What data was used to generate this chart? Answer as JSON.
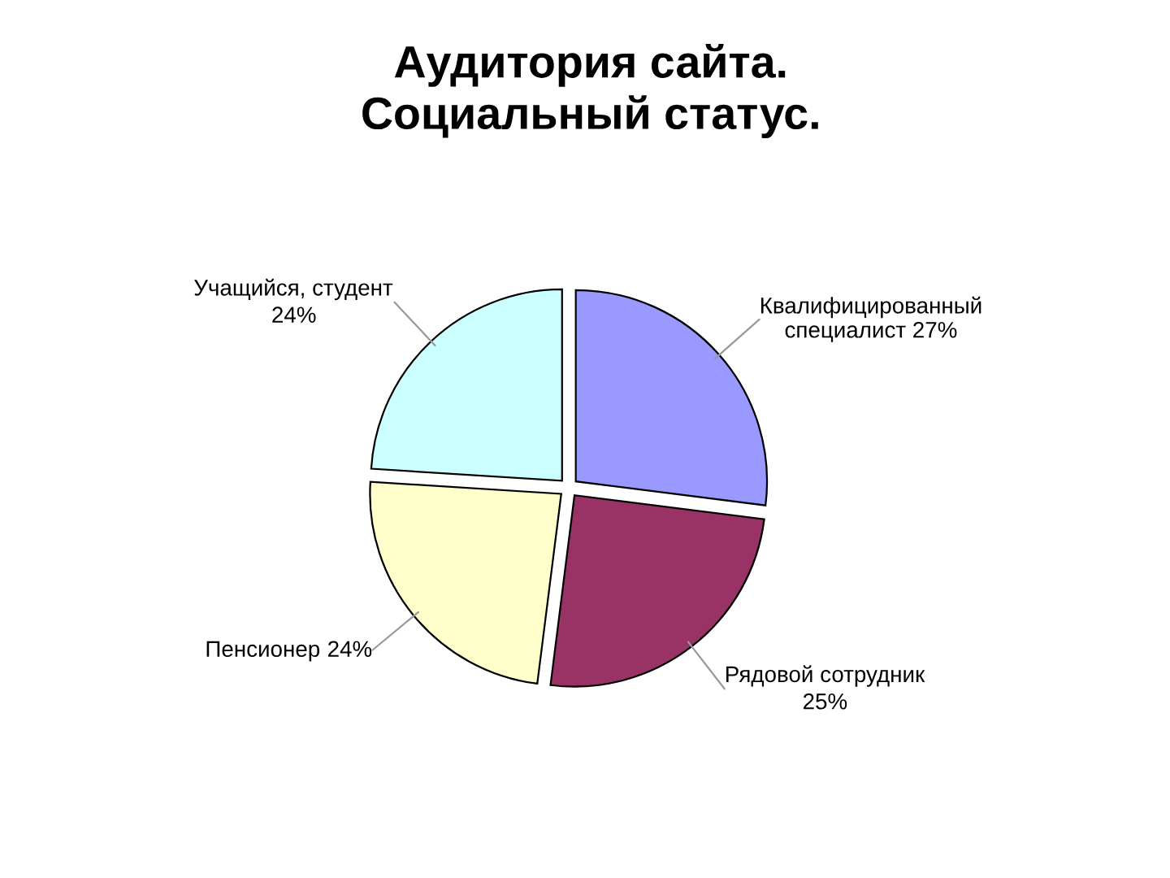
{
  "chart_data": {
    "type": "pie",
    "title": "Аудитория сайта.\nСоциальный статус.",
    "categories": [
      "Квалифицированный специалист",
      "Рядовой сотрудник",
      "Пенсионер",
      "Учащийся, студент"
    ],
    "values": [
      27,
      25,
      24,
      24
    ],
    "colors": [
      "#9999ff",
      "#993366",
      "#ffffcc",
      "#ccffff"
    ],
    "value_labels": [
      "27%",
      "25%",
      "24%",
      "24%"
    ]
  }
}
